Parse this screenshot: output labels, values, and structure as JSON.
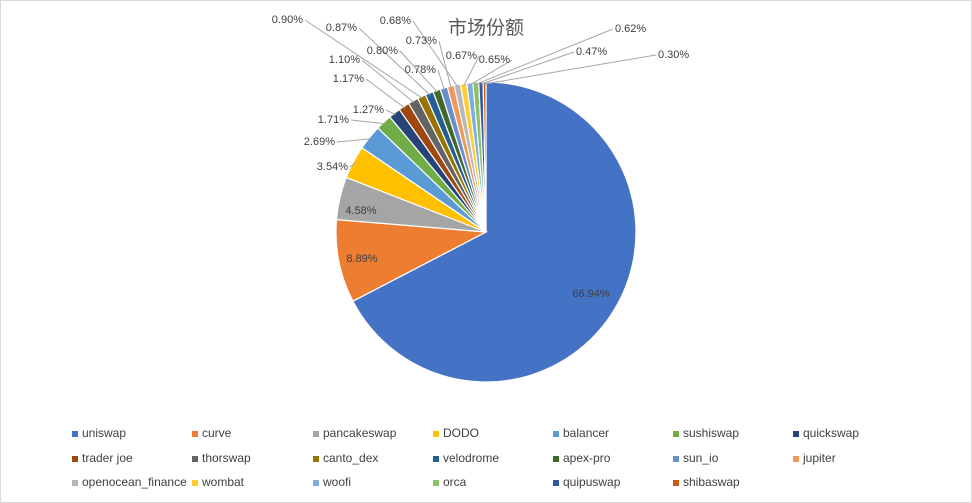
{
  "chart_data": {
    "type": "pie",
    "title": "市场份额",
    "legend_position": "bottom",
    "slices": [
      {
        "name": "uniswap",
        "value": 66.94,
        "label": "66.94%",
        "color": "#4472C4"
      },
      {
        "name": "curve",
        "value": 8.89,
        "label": "8.89%",
        "color": "#ED7D31"
      },
      {
        "name": "pancakeswap",
        "value": 4.58,
        "label": "4.58%",
        "color": "#A5A5A5"
      },
      {
        "name": "DODO",
        "value": 3.54,
        "label": "3.54%",
        "color": "#FFC000"
      },
      {
        "name": "balancer",
        "value": 2.69,
        "label": "2.69%",
        "color": "#5B9BD5"
      },
      {
        "name": "sushiswap",
        "value": 1.71,
        "label": "1.71%",
        "color": "#70AD47"
      },
      {
        "name": "quickswap",
        "value": 1.27,
        "label": "1.27%",
        "color": "#264478"
      },
      {
        "name": "trader joe",
        "value": 1.17,
        "label": "1.17%",
        "color": "#9E480E"
      },
      {
        "name": "thorswap",
        "value": 1.1,
        "label": "1.10%",
        "color": "#636363"
      },
      {
        "name": "canto_dex",
        "value": 0.9,
        "label": "0.90%",
        "color": "#997300"
      },
      {
        "name": "velodrome",
        "value": 0.87,
        "label": "0.87%",
        "color": "#255E91"
      },
      {
        "name": "apex-pro",
        "value": 0.8,
        "label": "0.80%",
        "color": "#43682B"
      },
      {
        "name": "sun_io",
        "value": 0.78,
        "label": "0.78%",
        "color": "#698ED0"
      },
      {
        "name": "jupiter",
        "value": 0.73,
        "label": "0.73%",
        "color": "#F1975A"
      },
      {
        "name": "openocean_finance",
        "value": 0.68,
        "label": "0.68%",
        "color": "#B7B7B7"
      },
      {
        "name": "wombat",
        "value": 0.67,
        "label": "0.67%",
        "color": "#FFCD33"
      },
      {
        "name": "woofi",
        "value": 0.65,
        "label": "0.65%",
        "color": "#7CAFDD"
      },
      {
        "name": "orca",
        "value": 0.62,
        "label": "0.62%",
        "color": "#8CC168"
      },
      {
        "name": "quipuswap",
        "value": 0.47,
        "label": "0.47%",
        "color": "#335AA1"
      },
      {
        "name": "shibaswap",
        "value": 0.3,
        "label": "0.30%",
        "color": "#C55A11"
      }
    ]
  }
}
